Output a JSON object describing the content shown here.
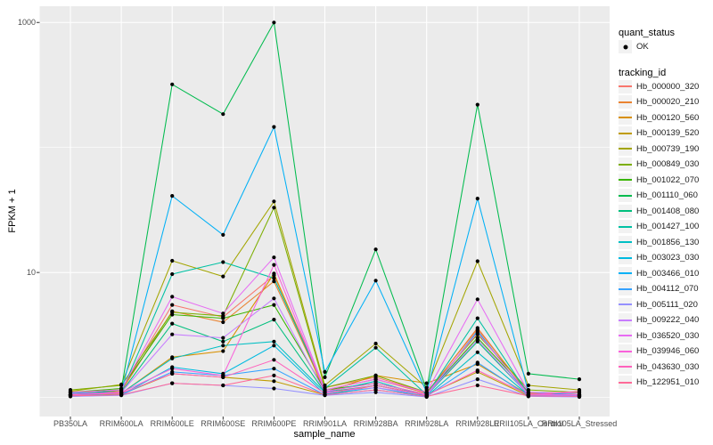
{
  "figure": {
    "background": "#FFFFFF",
    "panel_background": "#EBEBEB",
    "gridline_color": "#FFFFFF",
    "axis_text_color": "#4D4D4D",
    "point_color": "#000000"
  },
  "axes": {
    "x_title": "sample_name",
    "y_title": "FPKM + 1",
    "y_tick_labels": [
      "1000",
      "10"
    ]
  },
  "legend": {
    "quant_status_title": "quant_status",
    "ok_label": "OK",
    "tracking_id_title": "tracking_id"
  },
  "chart_data": {
    "type": "line",
    "title": "",
    "xlabel": "sample_name",
    "ylabel": "FPKM + 1",
    "y_scale": "log10",
    "y_axis_breaks": [
      1000,
      10
    ],
    "y_minor_gridlines": [
      100,
      1
    ],
    "ylim": [
      1,
      1050
    ],
    "grid": true,
    "legend_position": "right",
    "point_marker": {
      "shape": "circle",
      "color": "#000000",
      "label": "OK"
    },
    "categories": [
      "PB350LA",
      "RRIM600LA",
      "RRIM600LE",
      "RRIM600SE",
      "RRIM600PE",
      "RRIM901LA",
      "RRIM928BA",
      "RRIM928LA",
      "RRIM928LE",
      "RRII105LA_Control",
      "RRII105LA_Stressed"
    ],
    "series": [
      {
        "name": "Hb_000000_320",
        "color": "#F8766D",
        "values": [
          1.1,
          1.15,
          5.5,
          4.4,
          9.5,
          1.2,
          1.45,
          1.1,
          3.5,
          1.1,
          1.05
        ]
      },
      {
        "name": "Hb_000020_210",
        "color": "#EA8331",
        "values": [
          1.08,
          1.12,
          4.9,
          4.0,
          8.5,
          1.15,
          1.4,
          1.08,
          3.6,
          1.08,
          1.05
        ]
      },
      {
        "name": "Hb_000120_560",
        "color": "#D89000",
        "values": [
          1.05,
          1.08,
          2.1,
          2.35,
          9.8,
          1.1,
          1.5,
          1.3,
          1.85,
          1.05,
          1.03
        ]
      },
      {
        "name": "Hb_000139_520",
        "color": "#C09B00",
        "values": [
          1.03,
          1.06,
          1.55,
          1.45,
          1.35,
          1.05,
          1.25,
          1.05,
          1.6,
          1.03,
          1.02
        ]
      },
      {
        "name": "Hb_000739_190",
        "color": "#A3A500",
        "values": [
          1.12,
          1.27,
          12.4,
          9.3,
          37,
          1.25,
          2.7,
          1.2,
          12.3,
          1.25,
          1.15
        ]
      },
      {
        "name": "Hb_000849_030",
        "color": "#7CAE00",
        "values": [
          1.15,
          1.25,
          4.8,
          4.5,
          33,
          1.2,
          1.5,
          1.1,
          3.2,
          1.15,
          1.1
        ]
      },
      {
        "name": "Hb_001022_070",
        "color": "#39B600",
        "values": [
          1.1,
          1.18,
          4.6,
          4.3,
          5.5,
          1.15,
          1.3,
          1.06,
          3.0,
          1.1,
          1.08
        ]
      },
      {
        "name": "Hb_001110_060",
        "color": "#00BB4E",
        "values": [
          1.05,
          1.15,
          320,
          185,
          1000,
          1.45,
          15.3,
          1.15,
          220,
          1.55,
          1.4
        ]
      },
      {
        "name": "Hb_001408_080",
        "color": "#00BF7D",
        "values": [
          1.05,
          1.1,
          3.9,
          2.8,
          4.2,
          1.1,
          1.25,
          1.04,
          2.8,
          1.05,
          1.04
        ]
      },
      {
        "name": "Hb_001427_100",
        "color": "#00C1A3",
        "values": [
          1.05,
          1.1,
          9.7,
          12.1,
          9.0,
          1.18,
          2.5,
          1.05,
          4.3,
          1.06,
          1.04
        ]
      },
      {
        "name": "Hb_001856_130",
        "color": "#00BFC4",
        "values": [
          1.04,
          1.08,
          2.05,
          2.6,
          2.8,
          1.1,
          1.35,
          1.02,
          2.3,
          1.04,
          1.02
        ]
      },
      {
        "name": "Hb_003023_030",
        "color": "#00BAE0",
        "values": [
          1.03,
          1.05,
          1.75,
          1.55,
          2.6,
          1.06,
          1.2,
          1.02,
          3.4,
          1.03,
          1.02
        ]
      },
      {
        "name": "Hb_003466_010",
        "color": "#00B0F6",
        "values": [
          1.08,
          1.1,
          41,
          20,
          146,
          1.6,
          8.6,
          1.1,
          39,
          1.1,
          1.05
        ]
      },
      {
        "name": "Hb_004112_070",
        "color": "#35A2FF",
        "values": [
          1.02,
          1.05,
          1.6,
          1.5,
          1.7,
          1.05,
          1.15,
          1.02,
          1.9,
          1.03,
          1.02
        ]
      },
      {
        "name": "Hb_005111_020",
        "color": "#9590FF",
        "values": [
          1.02,
          1.04,
          1.3,
          1.25,
          1.18,
          1.04,
          1.1,
          1.01,
          1.4,
          1.02,
          1.01
        ]
      },
      {
        "name": "Hb_009222_040",
        "color": "#C77CFF",
        "values": [
          1.05,
          1.1,
          3.2,
          3.0,
          6.2,
          1.1,
          1.2,
          1.05,
          2.9,
          1.05,
          1.04
        ]
      },
      {
        "name": "Hb_036520_030",
        "color": "#E76BF3",
        "values": [
          1.1,
          1.15,
          6.4,
          4.7,
          13.2,
          1.15,
          1.4,
          1.1,
          6.1,
          1.1,
          1.08
        ]
      },
      {
        "name": "Hb_039946_060",
        "color": "#FA62DB",
        "values": [
          1.06,
          1.1,
          1.7,
          1.5,
          11.5,
          1.12,
          1.3,
          1.06,
          3.3,
          1.06,
          1.05
        ]
      },
      {
        "name": "Hb_043630_030",
        "color": "#FF62BC",
        "values": [
          1.05,
          1.08,
          1.55,
          1.45,
          2.0,
          1.08,
          1.25,
          1.04,
          1.65,
          1.05,
          1.12
        ]
      },
      {
        "name": "Hb_122951_010",
        "color": "#FF6A98",
        "values": [
          1.03,
          1.05,
          1.3,
          1.25,
          1.5,
          1.05,
          1.15,
          1.02,
          1.25,
          1.03,
          1.02
        ]
      }
    ]
  }
}
